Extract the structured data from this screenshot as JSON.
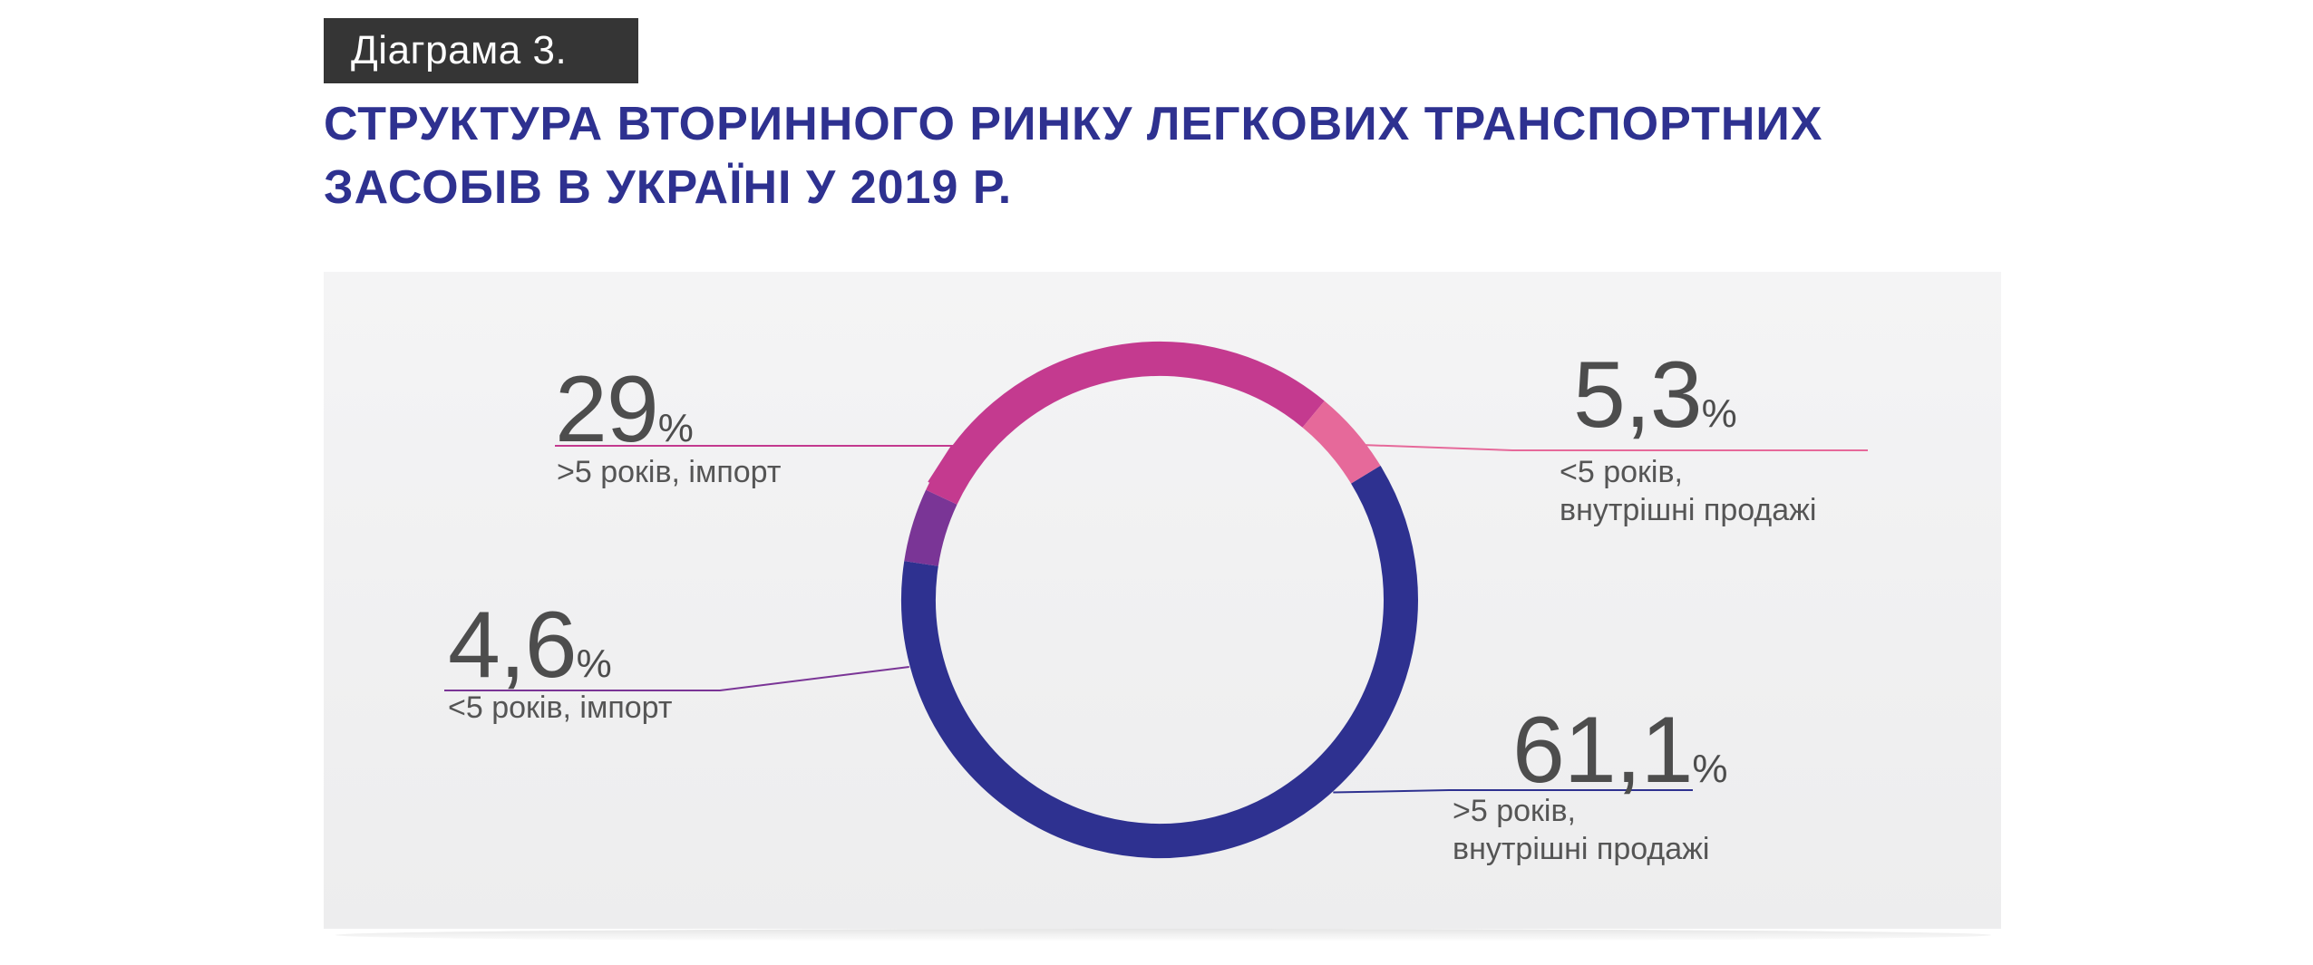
{
  "header": {
    "tag": "Діаграма 3.",
    "title_line1": "СТРУКТУРА ВТОРИННОГО РИНКУ ЛЕГКОВИХ ТРАНСПОРТНИХ",
    "title_line2": "ЗАСОБІВ В УКРАЇНІ У 2019 Р."
  },
  "chart_data": {
    "type": "pie",
    "style": "donut",
    "unit": "%",
    "series": [
      {
        "value": 61.1,
        "value_label": "61,1",
        "label_line1": ">5 років,",
        "label_line2": "внутрішні продажі",
        "color": "#2e3190"
      },
      {
        "value": 4.6,
        "value_label": "4,6",
        "label_line1": "<5 років, імпорт",
        "label_line2": "",
        "color": "#7a3596"
      },
      {
        "value": 29,
        "value_label": "29",
        "label_line1": ">5 років, імпорт",
        "label_line2": "",
        "color": "#c43a8f"
      },
      {
        "value": 5.3,
        "value_label": "5,3",
        "label_line1": "<5 років,",
        "label_line2": "внутрішні продажі",
        "color": "#e6699a"
      }
    ]
  }
}
